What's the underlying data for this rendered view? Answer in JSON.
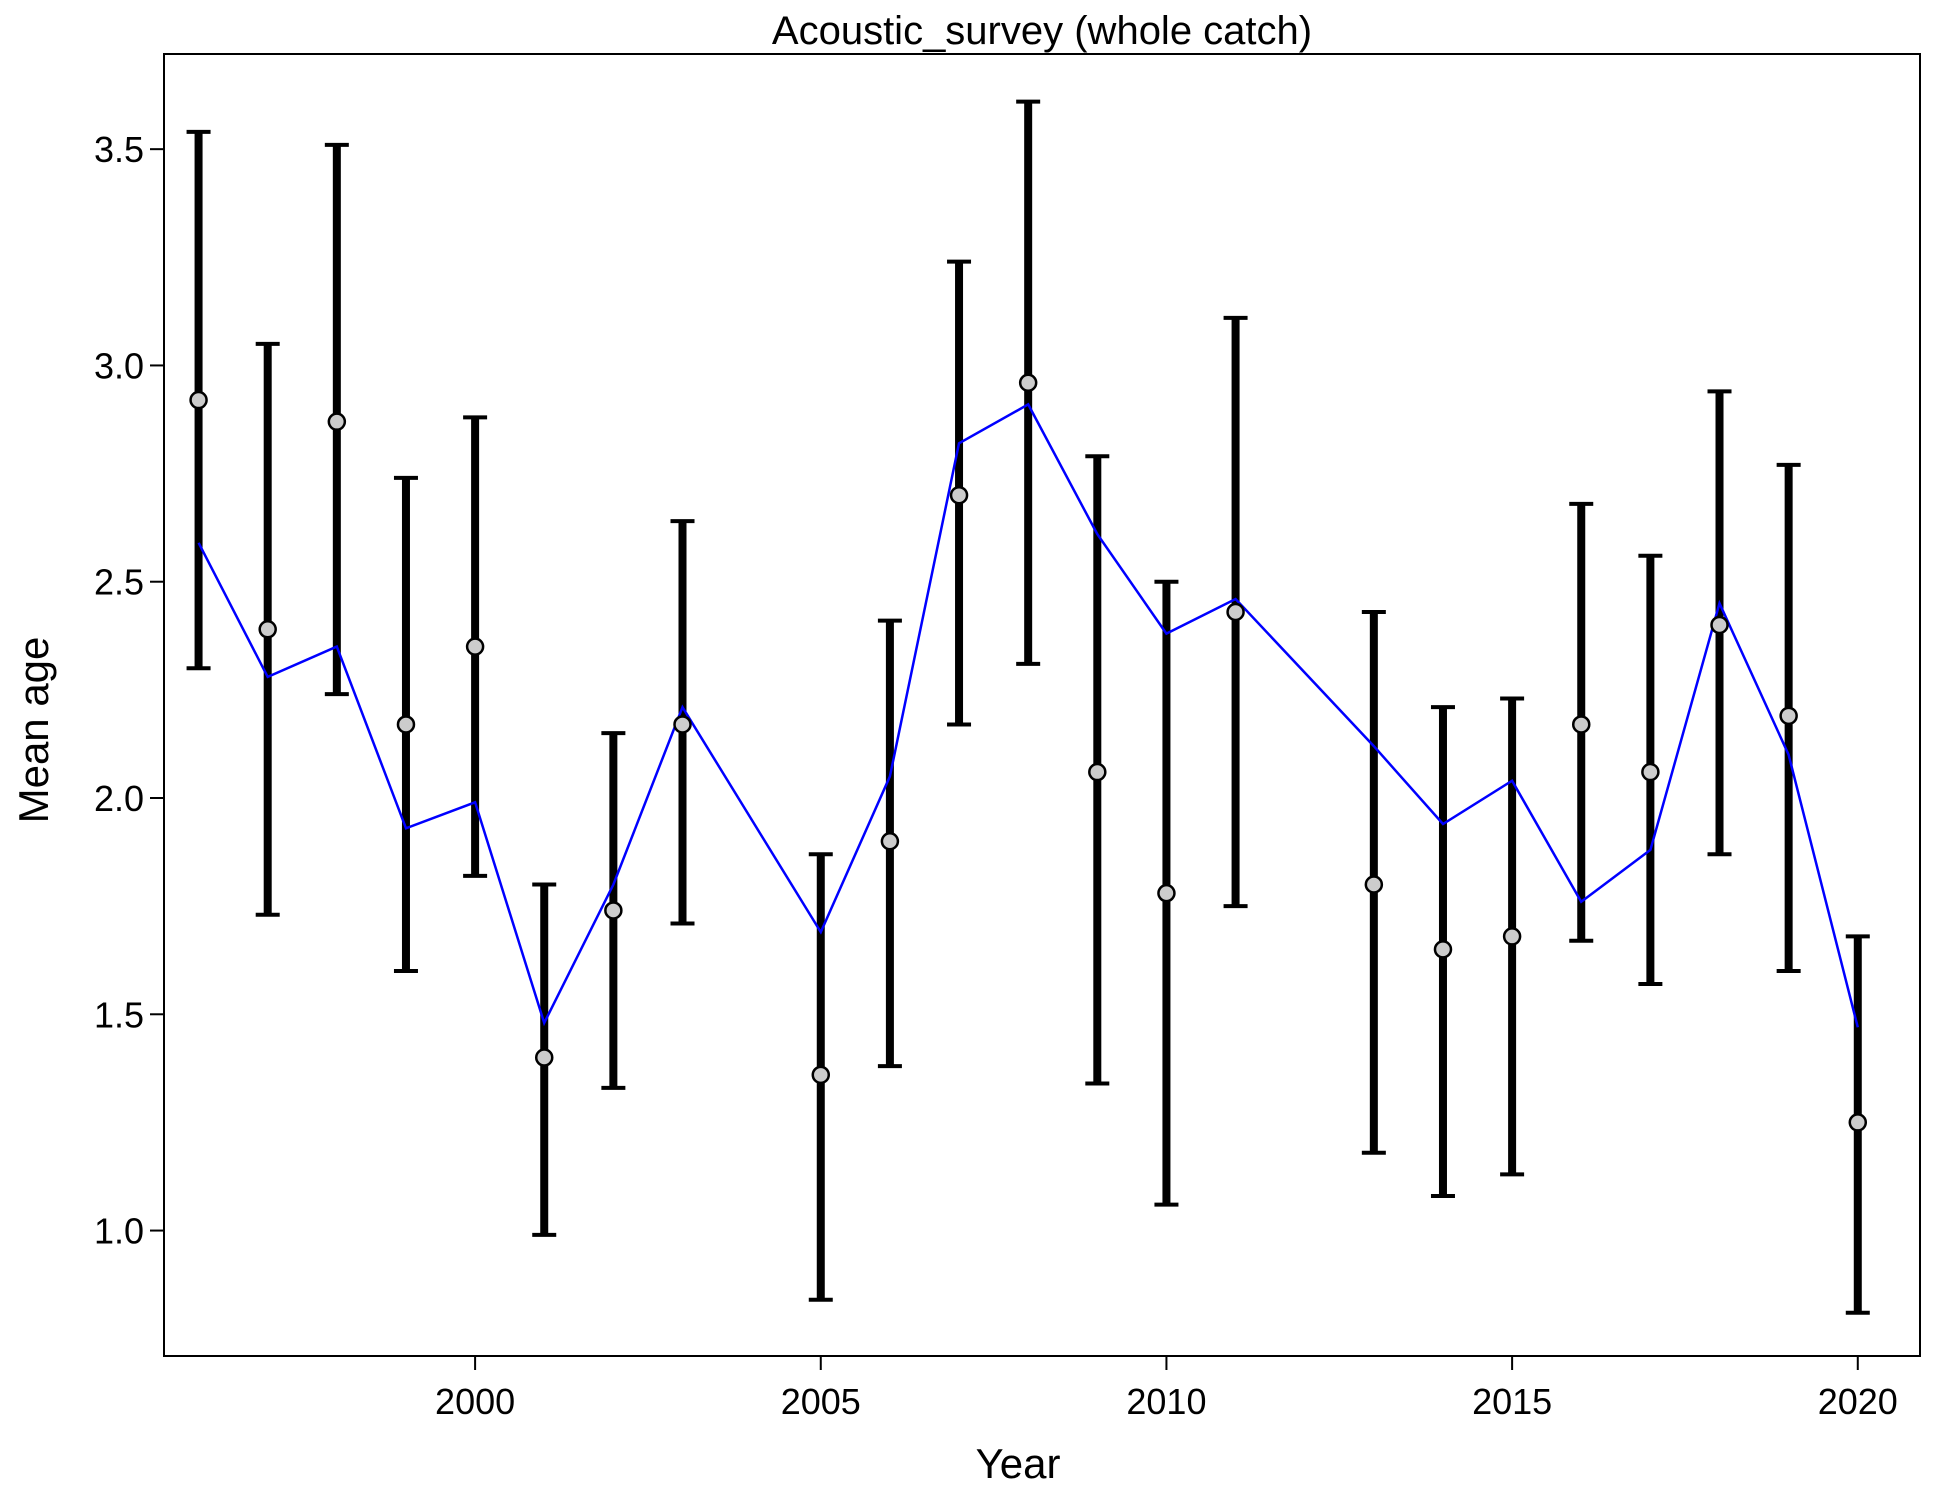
{
  "chart_data": {
    "type": "scatter",
    "title": "Acoustic_survey (whole catch)",
    "xlabel": "Year",
    "ylabel": "Mean age",
    "xlim": [
      1995.5,
      2020.9
    ],
    "ylim": [
      0.71,
      3.72
    ],
    "x_ticks": [
      2000,
      2005,
      2010,
      2015,
      2020
    ],
    "x_tick_labels": [
      "2000",
      "2005",
      "2010",
      "2015",
      "2020"
    ],
    "y_ticks": [
      1.0,
      1.5,
      2.0,
      2.5,
      3.0,
      3.5
    ],
    "y_tick_labels": [
      "1.0",
      "1.5",
      "2.0",
      "2.5",
      "3.0",
      "3.5"
    ],
    "grid": false,
    "legend": "none",
    "colors": {
      "observed_point_fill": "#cccccc",
      "observed_point_stroke": "#000000",
      "error_bar": "#000000",
      "expected_line": "#0000ff"
    },
    "series": [
      {
        "type": "errorbar_points",
        "x": [
          1996,
          1997,
          1998,
          1999,
          2000,
          2001,
          2002,
          2003,
          2005,
          2006,
          2007,
          2008,
          2009,
          2010,
          2011,
          2013,
          2014,
          2015,
          2016,
          2017,
          2018,
          2019,
          2020
        ],
        "values": [
          2.92,
          2.39,
          2.87,
          2.17,
          2.35,
          1.4,
          1.74,
          2.17,
          1.36,
          1.9,
          2.7,
          2.96,
          2.06,
          1.78,
          2.43,
          1.8,
          1.65,
          1.68,
          2.17,
          2.06,
          2.4,
          2.19,
          1.25
        ],
        "lower": [
          2.3,
          1.73,
          2.24,
          1.6,
          1.82,
          0.99,
          1.33,
          1.71,
          0.84,
          1.38,
          2.17,
          2.31,
          1.34,
          1.06,
          1.75,
          1.18,
          1.08,
          1.13,
          1.67,
          1.57,
          1.87,
          1.6,
          0.81
        ],
        "upper": [
          3.54,
          3.05,
          3.51,
          2.74,
          2.88,
          1.8,
          2.15,
          2.64,
          1.87,
          2.41,
          3.24,
          3.61,
          2.79,
          2.5,
          3.11,
          2.43,
          2.21,
          2.23,
          2.68,
          2.56,
          2.94,
          2.77,
          1.68
        ]
      },
      {
        "type": "line",
        "x": [
          1996,
          1997,
          1998,
          1999,
          2000,
          2001,
          2002,
          2003,
          2005,
          2006,
          2007,
          2008,
          2009,
          2010,
          2011,
          2013,
          2014,
          2015,
          2016,
          2017,
          2018,
          2019,
          2020
        ],
        "values": [
          2.59,
          2.28,
          2.35,
          1.93,
          1.99,
          1.48,
          1.8,
          2.21,
          1.69,
          2.05,
          2.82,
          2.91,
          2.61,
          2.38,
          2.46,
          2.12,
          1.94,
          2.04,
          1.76,
          1.88,
          2.45,
          2.1,
          1.47
        ]
      }
    ]
  }
}
